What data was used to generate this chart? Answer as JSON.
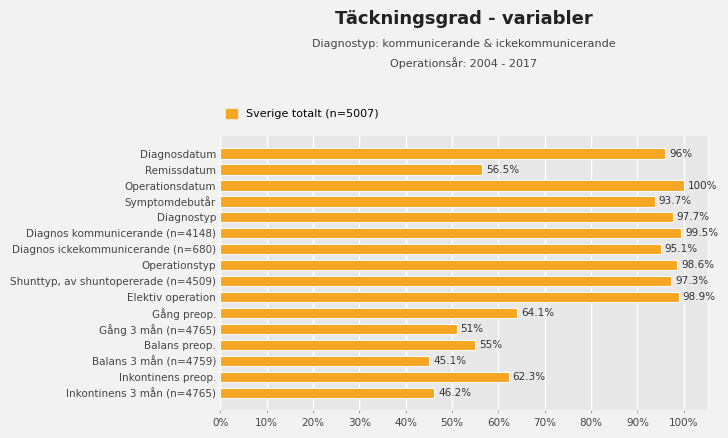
{
  "title": "Täckningsgrad - variabler",
  "subtitle1": "Diagnostyp: kommunicerande & ickekommunicerande",
  "subtitle2": "Operationsår: 2004 - 2017",
  "legend_label": "Sverige totalt (n=5007)",
  "bar_color": "#F5A623",
  "background_color": "#F2F2F2",
  "plot_bg_color": "#E8E8E8",
  "categories": [
    "Diagnosdatum",
    "Remissdatum",
    "Operationsdatum",
    "Symptomdebutår",
    "Diagnostyp",
    "Diagnos kommunicerande (n=4148)",
    "Diagnos ickekommunicerande (n=680)",
    "Operationstyp",
    "Shunttyp, av shuntopererade (n=4509)",
    "Elektiv operation",
    "Gång preop.",
    "Gång 3 mån (n=4765)",
    "Balans preop.",
    "Balans 3 mån (n=4759)",
    "Inkontinens preop.",
    "Inkontinens 3 mån (n=4765)"
  ],
  "values": [
    96.0,
    56.5,
    100.0,
    93.7,
    97.7,
    99.5,
    95.1,
    98.6,
    97.3,
    98.9,
    64.1,
    51.0,
    55.0,
    45.1,
    62.3,
    46.2
  ],
  "value_labels": [
    "96%",
    "56.5%",
    "100%",
    "93.7%",
    "97.7%",
    "99.5%",
    "95.1%",
    "98.6%",
    "97.3%",
    "98.9%",
    "64.1%",
    "51%",
    "55%",
    "45.1%",
    "62.3%",
    "46.2%"
  ],
  "xlim": [
    0,
    105
  ],
  "xtick_labels": [
    "0%",
    "10%",
    "20%",
    "30%",
    "40%",
    "50%",
    "60%",
    "70%",
    "80%",
    "90%",
    "100%"
  ],
  "xtick_values": [
    0,
    10,
    20,
    30,
    40,
    50,
    60,
    70,
    80,
    90,
    100
  ],
  "title_fontsize": 13,
  "subtitle_fontsize": 8,
  "label_fontsize": 7.5,
  "tick_fontsize": 7.5,
  "value_fontsize": 7.5
}
